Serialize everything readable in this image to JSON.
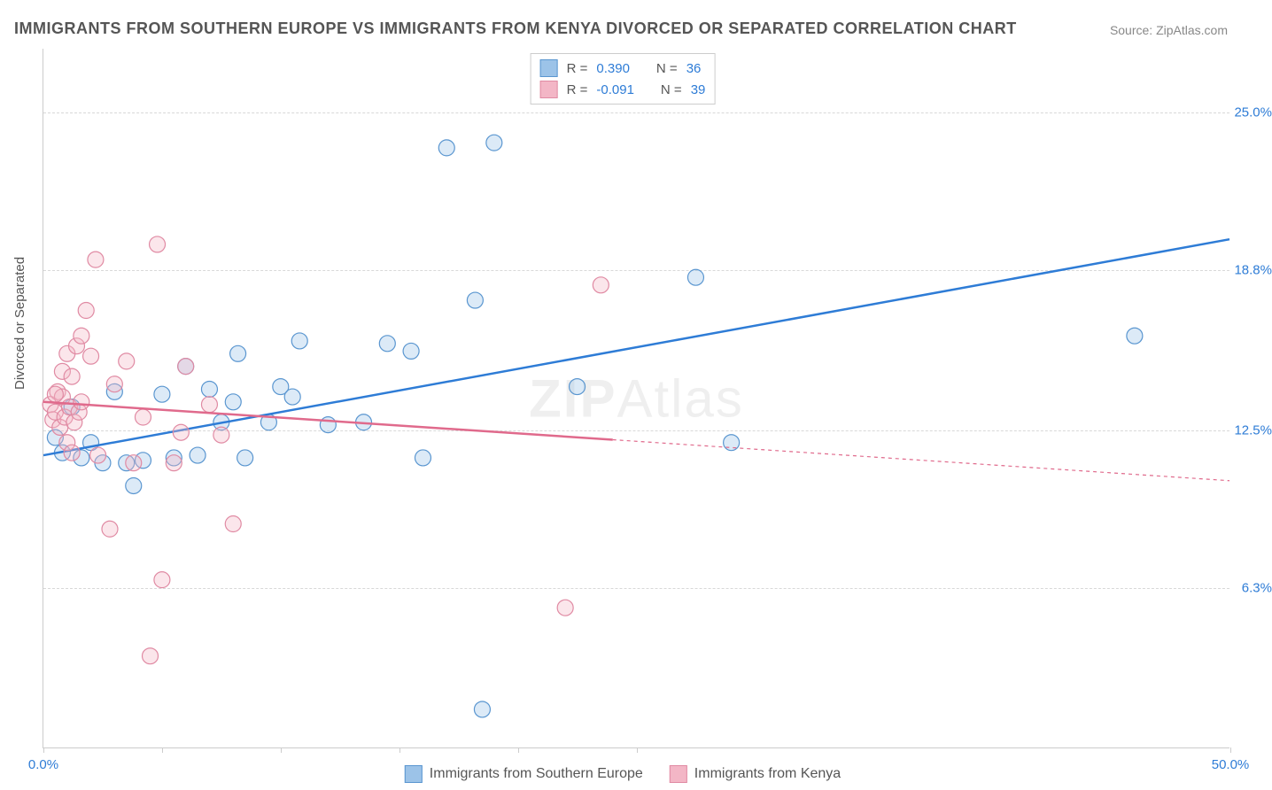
{
  "title": "IMMIGRANTS FROM SOUTHERN EUROPE VS IMMIGRANTS FROM KENYA DIVORCED OR SEPARATED CORRELATION CHART",
  "source": "Source: ZipAtlas.com",
  "ylabel": "Divorced or Separated",
  "watermark_bold": "ZIP",
  "watermark_rest": "Atlas",
  "chart": {
    "type": "scatter",
    "xlim": [
      0,
      50
    ],
    "ylim": [
      0,
      27.5
    ],
    "y_gridlines": [
      6.3,
      12.5,
      18.8,
      25.0
    ],
    "y_tick_labels": [
      "6.3%",
      "12.5%",
      "18.8%",
      "25.0%"
    ],
    "x_ticks": [
      0,
      5,
      10,
      15,
      20,
      25,
      50
    ],
    "x_tick_labels_shown": {
      "0": "0.0%",
      "50": "50.0%"
    },
    "background_color": "#ffffff",
    "grid_color": "#d8d8d8",
    "axis_color": "#cccccc",
    "marker_radius": 9,
    "series": [
      {
        "name": "Immigrants from Southern Europe",
        "color_fill": "#9cc3e8",
        "color_stroke": "#5a96d0",
        "line_color": "#2e7cd6",
        "R": "0.390",
        "N": "36",
        "trend": {
          "x1": 0,
          "y1": 11.5,
          "x2": 50,
          "y2": 20.0,
          "solid_until": 50
        },
        "points": [
          [
            0.5,
            12.2
          ],
          [
            0.8,
            11.6
          ],
          [
            1.2,
            13.4
          ],
          [
            1.6,
            11.4
          ],
          [
            2.0,
            12.0
          ],
          [
            2.5,
            11.2
          ],
          [
            3.0,
            14.0
          ],
          [
            3.5,
            11.2
          ],
          [
            3.8,
            10.3
          ],
          [
            4.2,
            11.3
          ],
          [
            5.0,
            13.9
          ],
          [
            5.5,
            11.4
          ],
          [
            6.0,
            15.0
          ],
          [
            6.5,
            11.5
          ],
          [
            7.0,
            14.1
          ],
          [
            7.5,
            12.8
          ],
          [
            8.0,
            13.6
          ],
          [
            8.2,
            15.5
          ],
          [
            8.5,
            11.4
          ],
          [
            9.5,
            12.8
          ],
          [
            10.0,
            14.2
          ],
          [
            10.5,
            13.8
          ],
          [
            10.8,
            16.0
          ],
          [
            12.0,
            12.7
          ],
          [
            13.5,
            12.8
          ],
          [
            14.5,
            15.9
          ],
          [
            15.5,
            15.6
          ],
          [
            16.0,
            11.4
          ],
          [
            17.0,
            23.6
          ],
          [
            18.2,
            17.6
          ],
          [
            18.5,
            1.5
          ],
          [
            19.0,
            23.8
          ],
          [
            22.5,
            14.2
          ],
          [
            27.5,
            18.5
          ],
          [
            29.0,
            12.0
          ],
          [
            46.0,
            16.2
          ]
        ]
      },
      {
        "name": "Immigrants from Kenya",
        "color_fill": "#f3b6c6",
        "color_stroke": "#e08aa3",
        "line_color": "#e06a8c",
        "R": "-0.091",
        "N": "39",
        "trend": {
          "x1": 0,
          "y1": 13.6,
          "x2": 50,
          "y2": 10.5,
          "solid_until": 24
        },
        "points": [
          [
            0.3,
            13.5
          ],
          [
            0.4,
            12.9
          ],
          [
            0.5,
            13.2
          ],
          [
            0.6,
            14.0
          ],
          [
            0.7,
            12.6
          ],
          [
            0.8,
            13.8
          ],
          [
            0.8,
            14.8
          ],
          [
            0.9,
            13.0
          ],
          [
            1.0,
            12.0
          ],
          [
            1.0,
            15.5
          ],
          [
            1.1,
            13.4
          ],
          [
            1.2,
            11.6
          ],
          [
            1.2,
            14.6
          ],
          [
            1.3,
            12.8
          ],
          [
            1.4,
            15.8
          ],
          [
            1.5,
            13.2
          ],
          [
            1.6,
            13.6
          ],
          [
            1.8,
            17.2
          ],
          [
            2.0,
            15.4
          ],
          [
            2.2,
            19.2
          ],
          [
            2.3,
            11.5
          ],
          [
            2.8,
            8.6
          ],
          [
            3.0,
            14.3
          ],
          [
            3.5,
            15.2
          ],
          [
            3.8,
            11.2
          ],
          [
            4.2,
            13.0
          ],
          [
            4.5,
            3.6
          ],
          [
            4.8,
            19.8
          ],
          [
            5.0,
            6.6
          ],
          [
            5.5,
            11.2
          ],
          [
            5.8,
            12.4
          ],
          [
            6.0,
            15.0
          ],
          [
            7.0,
            13.5
          ],
          [
            7.5,
            12.3
          ],
          [
            8.0,
            8.8
          ],
          [
            22.0,
            5.5
          ],
          [
            23.5,
            18.2
          ],
          [
            1.6,
            16.2
          ],
          [
            0.5,
            13.9
          ]
        ]
      }
    ]
  },
  "legend_top_label_R": "R =",
  "legend_top_label_N": "N ="
}
